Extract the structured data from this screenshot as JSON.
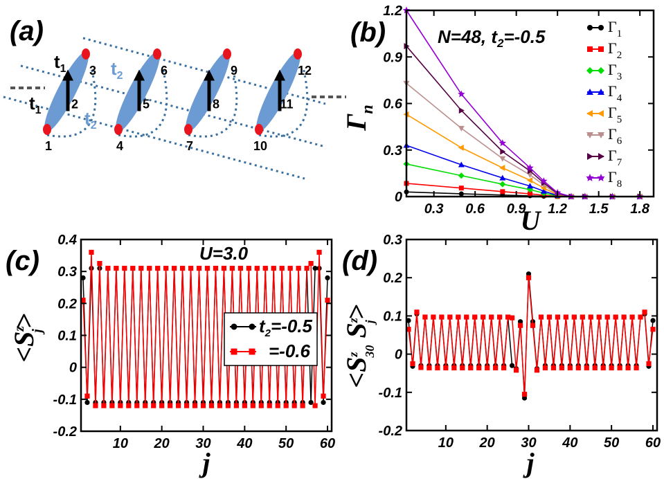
{
  "colors": {
    "black": "#000000",
    "red": "#ff0000",
    "green": "#00dd00",
    "blue": "#0000ee",
    "orange": "#ff9900",
    "rosybrown": "#bc8f8f",
    "darkpurple": "#550044",
    "violet": "#9400d3",
    "ellipse": "#6b9bd2",
    "dotted": "#3a6fa0",
    "site": "#e8141e"
  },
  "panel_a": {
    "label": "(a)",
    "hop_labels": [
      "t",
      "1",
      "t",
      "1",
      "t",
      "2",
      "t",
      "2"
    ],
    "site_numbers": [
      "1",
      "2",
      "3",
      "4",
      "5",
      "6",
      "7",
      "8",
      "9",
      "10",
      "11",
      "12"
    ],
    "ellipsis_left": "....",
    "ellipsis_right": "....",
    "icons": [
      "up-arrow-icon",
      "spin-site-icon"
    ]
  },
  "chart_data": [
    {
      "panel": "(b)",
      "type": "line",
      "title": "N=48, t",
      "title_sub": "2",
      "title_tail": "=-0.5",
      "xlabel": "U",
      "ylabel": "Γ",
      "ylabel_sub": "n",
      "xlim": [
        0.1,
        1.9
      ],
      "ylim": [
        0,
        1.2
      ],
      "xticks": [
        "0.3",
        "0.6",
        "0.9",
        "1.2",
        "1.5",
        "1.8"
      ],
      "yticks": [
        "0",
        "0.3",
        "0.6",
        "0.9",
        "1.2"
      ],
      "xtick_values": [
        0.3,
        0.6,
        0.9,
        1.2,
        1.5,
        1.8
      ],
      "ytick_values": [
        0,
        0.3,
        0.6,
        0.9,
        1.2
      ],
      "x": [
        0.1,
        0.5,
        0.8,
        1.0,
        1.1,
        1.2,
        1.3,
        1.4,
        1.6,
        1.8
      ],
      "series": [
        {
          "name": "Γ",
          "sub": "1",
          "color": "#000000",
          "marker": "circle",
          "values": [
            0.03,
            0.018,
            0.01,
            0.005,
            0.002,
            0.0,
            0.0,
            0.0,
            0.0,
            0.0
          ]
        },
        {
          "name": "Γ",
          "sub": "2",
          "color": "#ff0000",
          "marker": "square",
          "values": [
            0.085,
            0.055,
            0.032,
            0.018,
            0.008,
            0.001,
            0.0,
            0.0,
            0.0,
            0.0
          ]
        },
        {
          "name": "Γ",
          "sub": "3",
          "color": "#00dd00",
          "marker": "diamond",
          "values": [
            0.21,
            0.135,
            0.08,
            0.045,
            0.022,
            0.004,
            0.0,
            0.0,
            0.0,
            0.0
          ]
        },
        {
          "name": "Γ",
          "sub": "4",
          "color": "#0000ee",
          "marker": "triangle-up",
          "values": [
            0.33,
            0.205,
            0.12,
            0.068,
            0.035,
            0.007,
            0.0,
            0.0,
            0.0,
            0.0
          ]
        },
        {
          "name": "Γ",
          "sub": "5",
          "color": "#ff9900",
          "marker": "triangle-left",
          "values": [
            0.53,
            0.315,
            0.185,
            0.105,
            0.055,
            0.012,
            0.0,
            0.0,
            0.0,
            0.0
          ]
        },
        {
          "name": "Γ",
          "sub": "6",
          "color": "#bc8f8f",
          "marker": "triangle-down",
          "values": [
            0.73,
            0.44,
            0.245,
            0.14,
            0.075,
            0.016,
            0.0,
            0.0,
            0.0,
            0.0
          ]
        },
        {
          "name": "Γ",
          "sub": "7",
          "color": "#550044",
          "marker": "triangle-right",
          "values": [
            0.97,
            0.555,
            0.29,
            0.165,
            0.088,
            0.02,
            0.0,
            0.0,
            0.0,
            0.0
          ]
        },
        {
          "name": "Γ",
          "sub": "8",
          "color": "#9400d3",
          "marker": "star",
          "values": [
            1.2,
            0.66,
            0.345,
            0.185,
            0.1,
            0.025,
            0.0,
            0.0,
            0.0,
            0.0
          ]
        }
      ],
      "legend_position": "right"
    },
    {
      "panel": "(c)",
      "type": "line",
      "annotation": "U=3.0",
      "xlabel": "j",
      "ylabel": "<S",
      "ylabel_sup": "z",
      "ylabel_sub": "j",
      "ylabel_tail": ">",
      "xlim": [
        0.5,
        61
      ],
      "ylim": [
        -0.2,
        0.4
      ],
      "xticks": [
        "10",
        "20",
        "30",
        "40",
        "50",
        "60"
      ],
      "xtick_values": [
        10,
        20,
        30,
        40,
        50,
        60
      ],
      "yticks": [
        "-0.2",
        "-0.1",
        "0",
        "0.1",
        "0.2",
        "0.3",
        "0.4"
      ],
      "ytick_values": [
        -0.2,
        -0.1,
        0,
        0.1,
        0.2,
        0.3,
        0.4
      ],
      "series": [
        {
          "name": "t",
          "sub": "2",
          "tail": "=-0.5",
          "color": "#000000",
          "marker": "circle",
          "odd_value": -0.11,
          "even_value": 0.31,
          "edges": {
            "1": 0.28,
            "2": -0.11,
            "3": 0.31,
            "58": 0.31,
            "59": -0.11,
            "60": 0.28
          }
        },
        {
          "name": "",
          "sub": "",
          "tail": "=-0.6",
          "color": "#ff0000",
          "marker": "square",
          "odd_value": -0.12,
          "even_value": 0.31,
          "edges": {
            "1": 0.21,
            "2": -0.09,
            "3": 0.36,
            "4": -0.12,
            "5": 0.325,
            "56": 0.325,
            "57": -0.12,
            "58": 0.36,
            "59": -0.09,
            "60": 0.21
          }
        }
      ],
      "legend_position": "bottom-right"
    },
    {
      "panel": "(d)",
      "type": "line",
      "xlabel": "j",
      "ylabel": "<S",
      "ylabel_sup": "z",
      "ylabel_sub": "30",
      "ylabel_mid": " S",
      "ylabel_sup2": "z",
      "ylabel_sub2": "j",
      "ylabel_tail": ">",
      "xlim": [
        0.5,
        61
      ],
      "ylim": [
        -0.2,
        0.3
      ],
      "xticks": [
        "10",
        "20",
        "30",
        "40",
        "50",
        "60"
      ],
      "xtick_values": [
        10,
        20,
        30,
        40,
        50,
        60
      ],
      "yticks": [
        "-0.2",
        "-0.1",
        "0",
        "0.1",
        "0.2",
        "0.3"
      ],
      "ytick_values": [
        -0.2,
        -0.1,
        0,
        0.1,
        0.2,
        0.3
      ],
      "series": [
        {
          "name": "t2=-0.5",
          "color": "#000000",
          "marker": "circle",
          "odd_value": -0.03,
          "even_value": 0.097,
          "edges": {
            "1": 0.088,
            "2": -0.032,
            "3": 0.105,
            "27": -0.038,
            "28": 0.085,
            "29": -0.115,
            "30": 0.21,
            "31": 0.085,
            "32": -0.038,
            "58": 0.105,
            "59": -0.032,
            "60": 0.088
          }
        },
        {
          "name": "t2=-0.6",
          "color": "#ff0000",
          "marker": "square",
          "odd_value": -0.036,
          "even_value": 0.097,
          "edges": {
            "1": 0.065,
            "2": -0.025,
            "3": 0.11,
            "4": -0.035,
            "26": 0.095,
            "27": -0.042,
            "28": 0.075,
            "29": -0.105,
            "30": 0.2,
            "31": 0.075,
            "32": -0.042,
            "58": 0.11,
            "59": -0.025,
            "60": 0.065
          }
        }
      ]
    }
  ]
}
